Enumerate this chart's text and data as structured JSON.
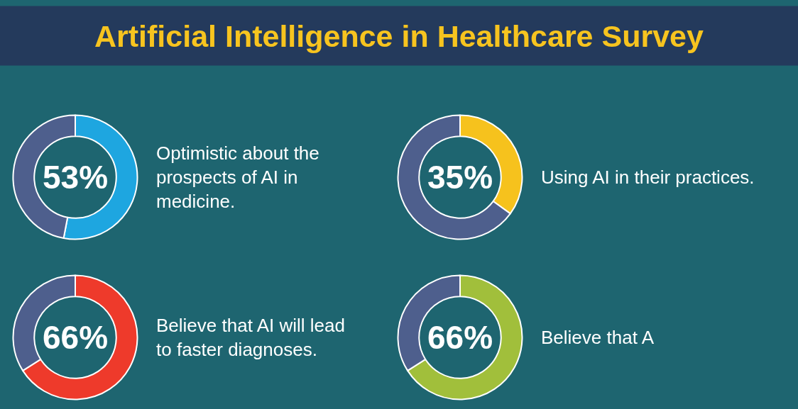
{
  "chart_data": [
    {
      "type": "donut",
      "title": "Artificial Intelligence in Healthcare Survey",
      "categories": [
        null,
        null
      ],
      "values": [
        53,
        47
      ],
      "colors": [
        "#1ea6e0",
        "#4e5f8d"
      ],
      "value_labels": [
        "53%",
        null
      ],
      "annotations": [
        "Optimistic about the prospects of AI in medicine."
      ]
    },
    {
      "type": "donut",
      "categories": [
        null,
        null
      ],
      "values": [
        35,
        65
      ],
      "colors": [
        "#f6c21d",
        "#4e5f8d"
      ],
      "value_labels": [
        "35%",
        null
      ],
      "annotations": [
        "Using AI in their practices."
      ]
    },
    {
      "type": "donut",
      "categories": [
        null,
        null
      ],
      "values": [
        66,
        34
      ],
      "colors": [
        "#ee3a2b",
        "#4e5f8d"
      ],
      "value_labels": [
        "66%",
        null
      ],
      "annotations": [
        "Believe that AI will lead to faster diagnoses."
      ]
    },
    {
      "type": "donut",
      "categories": [
        null,
        null
      ],
      "values": [
        66,
        34
      ],
      "colors": [
        "#a1bf3b",
        "#4e5f8d"
      ],
      "value_labels": [
        "66%",
        null
      ],
      "annotations": [
        "Believe that A"
      ]
    }
  ]
}
